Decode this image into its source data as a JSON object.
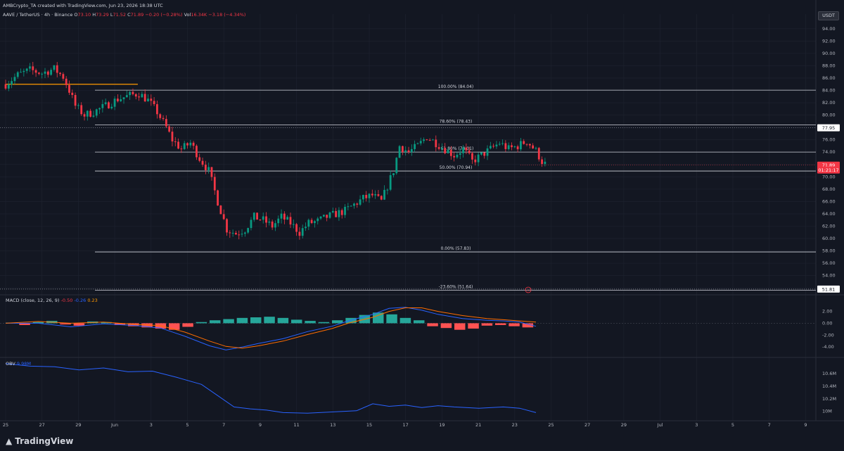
{
  "header": {
    "credit": "AMBCrypto_TA created with TradingView.com, Jun 23, 2026 18:38 UTC",
    "symbol": "AAVE / TetherUS · 4h · Binance",
    "o_label": "O",
    "o_value": "73.10",
    "h_label": "H",
    "h_value": "73.29",
    "l_label": "L",
    "l_value": "71.52",
    "c_label": "C",
    "c_value": "71.89",
    "change": "−0.20 (−0.28%)",
    "volume_label": "Vol",
    "volume_value": "16.34K",
    "vol_change": "−3.18 (−4.34%)"
  },
  "currency": "USDT",
  "logo": "TradingView",
  "colors": {
    "background": "#131722",
    "up": "#089981",
    "down": "#f23645",
    "fib_line": "#d1d4dc",
    "resistance": "#ff9800",
    "macd": "#2962ff",
    "signal": "#ff6d00",
    "obv": "#2962ff",
    "grid": "#1f2330"
  },
  "chart_data": [
    {
      "type": "candlestick",
      "title": "AAVE / TetherUS · 4h · Binance",
      "y_axis_ticks": [
        "94.00",
        "92.00",
        "90.00",
        "88.00",
        "86.00",
        "84.00",
        "82.00",
        "80.00",
        "78.00",
        "76.00",
        "74.00",
        "72.00",
        "70.00",
        "68.00",
        "66.00",
        "64.00",
        "62.00",
        "60.00",
        "58.00",
        "56.00",
        "54.00",
        "52.00"
      ],
      "ylim": [
        51,
        95
      ],
      "x_axis_ticks": [
        "25",
        "27",
        "29",
        "Jun",
        "3",
        "5",
        "7",
        "9",
        "11",
        "13",
        "15",
        "17",
        "19",
        "21",
        "23",
        "25",
        "27",
        "29",
        "Jul",
        "3",
        "5",
        "7",
        "9"
      ],
      "x_range_days": [
        "2026-05-25",
        "2026-07-10"
      ],
      "close_path": [
        [
          "2026-05-25T00:00",
          85.0
        ],
        [
          "2026-05-25T16:00",
          86.5
        ],
        [
          "2026-05-26T08:00",
          87.3
        ],
        [
          "2026-05-27T00:00",
          86.8
        ],
        [
          "2026-05-27T16:00",
          87.5
        ],
        [
          "2026-05-28T04:00",
          86.2
        ],
        [
          "2026-05-28T12:00",
          84.0
        ],
        [
          "2026-05-28T20:00",
          81.5
        ],
        [
          "2026-05-29T08:00",
          80.0
        ],
        [
          "2026-05-29T20:00",
          80.5
        ],
        [
          "2026-05-30T12:00",
          81.5
        ],
        [
          "2026-05-31T04:00",
          82.6
        ],
        [
          "2026-05-31T20:00",
          83.2
        ],
        [
          "2026-06-01T08:00",
          83.5
        ],
        [
          "2026-06-01T20:00",
          82.4
        ],
        [
          "2026-06-02T08:00",
          80.5
        ],
        [
          "2026-06-02T20:00",
          78.0
        ],
        [
          "2026-06-03T04:00",
          76.0
        ],
        [
          "2026-06-03T16:00",
          74.5
        ],
        [
          "2026-06-04T04:00",
          75.5
        ],
        [
          "2026-06-04T16:00",
          73.0
        ],
        [
          "2026-06-05T04:00",
          71.0
        ],
        [
          "2026-06-05T16:00",
          66.0
        ],
        [
          "2026-06-06T04:00",
          61.5
        ],
        [
          "2026-06-06T16:00",
          60.8
        ],
        [
          "2026-06-07T04:00",
          61.5
        ],
        [
          "2026-06-07T16:00",
          63.5
        ],
        [
          "2026-06-08T04:00",
          63.0
        ],
        [
          "2026-06-08T16:00",
          62.0
        ],
        [
          "2026-06-09T04:00",
          63.5
        ],
        [
          "2026-06-09T16:00",
          62.5
        ],
        [
          "2026-06-10T04:00",
          61.0
        ],
        [
          "2026-06-10T16:00",
          62.5
        ],
        [
          "2026-06-11T04:00",
          62.8
        ],
        [
          "2026-06-11T16:00",
          63.5
        ],
        [
          "2026-06-12T04:00",
          64.0
        ],
        [
          "2026-06-12T16:00",
          64.5
        ],
        [
          "2026-06-13T04:00",
          65.5
        ],
        [
          "2026-06-13T16:00",
          66.5
        ],
        [
          "2026-06-14T04:00",
          67.0
        ],
        [
          "2026-06-14T16:00",
          66.0
        ],
        [
          "2026-06-15T00:00",
          68.5
        ],
        [
          "2026-06-15T08:00",
          71.0
        ],
        [
          "2026-06-15T16:00",
          75.0
        ],
        [
          "2026-06-16T04:00",
          74.0
        ],
        [
          "2026-06-16T16:00",
          75.0
        ],
        [
          "2026-06-17T04:00",
          76.5
        ],
        [
          "2026-06-17T16:00",
          75.5
        ],
        [
          "2026-06-18T04:00",
          74.5
        ],
        [
          "2026-06-18T16:00",
          73.5
        ],
        [
          "2026-06-19T04:00",
          74.5
        ],
        [
          "2026-06-19T16:00",
          72.5
        ],
        [
          "2026-06-20T04:00",
          73.5
        ],
        [
          "2026-06-20T16:00",
          74.5
        ],
        [
          "2026-06-21T04:00",
          75.5
        ],
        [
          "2026-06-21T16:00",
          74.5
        ],
        [
          "2026-06-22T04:00",
          75.0
        ],
        [
          "2026-06-22T16:00",
          75.8
        ],
        [
          "2026-06-23T04:00",
          74.2
        ],
        [
          "2026-06-23T12:00",
          72.5
        ],
        [
          "2026-06-23T18:00",
          71.89
        ]
      ],
      "fib_levels": [
        {
          "label": "100.00% (84.04)",
          "value": 84.04
        },
        {
          "label": "78.60% (78.43)",
          "value": 78.43
        },
        {
          "label": "61.80% (74.01)",
          "value": 74.01
        },
        {
          "label": "50.00% (70.94)",
          "value": 70.94
        },
        {
          "label": "0.00% (57.83)",
          "value": 57.83
        },
        {
          "label": "-23.60% (51.64)",
          "value": 51.64
        }
      ],
      "resistance_line": {
        "value": 85.0,
        "x_from": "2026-05-25",
        "x_to": "2026-06-01"
      },
      "price_labels": [
        {
          "value": 77.95,
          "text": "77.95",
          "style": "white"
        },
        {
          "value": 71.89,
          "text": "71.89",
          "style": "red"
        },
        {
          "value": 71.1,
          "text": "01:21:17",
          "style": "red"
        },
        {
          "value": 51.81,
          "text": "51.81",
          "style": "white"
        }
      ]
    },
    {
      "type": "line",
      "title": "MACD (close, 12, 26, 9)",
      "title_values": [
        "-0.50",
        "-0.26",
        "0.23"
      ],
      "y_axis_ticks": [
        "2.00",
        "0.00",
        "-2.00",
        "-4.00"
      ],
      "ylim": [
        -5.4,
        4.2
      ],
      "series": [
        {
          "name": "MACD",
          "path": [
            [
              0,
              0.0
            ],
            [
              0.04,
              0.0
            ],
            [
              0.08,
              -0.6
            ],
            [
              0.12,
              -0.1
            ],
            [
              0.16,
              -0.4
            ],
            [
              0.19,
              -0.8
            ],
            [
              0.22,
              -2.2
            ],
            [
              0.25,
              -3.8
            ],
            [
              0.27,
              -4.5
            ],
            [
              0.29,
              -4.0
            ],
            [
              0.31,
              -3.4
            ],
            [
              0.34,
              -2.6
            ],
            [
              0.37,
              -1.4
            ],
            [
              0.4,
              -0.5
            ],
            [
              0.42,
              0.4
            ],
            [
              0.45,
              1.5
            ],
            [
              0.47,
              2.5
            ],
            [
              0.49,
              2.7
            ],
            [
              0.51,
              2.2
            ],
            [
              0.53,
              1.5
            ],
            [
              0.56,
              0.8
            ],
            [
              0.59,
              0.5
            ],
            [
              0.61,
              0.4
            ],
            [
              0.63,
              0.2
            ],
            [
              0.65,
              -0.5
            ]
          ]
        },
        {
          "name": "Signal",
          "path": [
            [
              0,
              0.0
            ],
            [
              0.04,
              0.3
            ],
            [
              0.08,
              0.0
            ],
            [
              0.12,
              0.2
            ],
            [
              0.16,
              -0.2
            ],
            [
              0.19,
              -0.4
            ],
            [
              0.22,
              -1.5
            ],
            [
              0.25,
              -3.0
            ],
            [
              0.27,
              -3.9
            ],
            [
              0.29,
              -4.2
            ],
            [
              0.31,
              -3.8
            ],
            [
              0.34,
              -3.0
            ],
            [
              0.37,
              -1.9
            ],
            [
              0.4,
              -0.9
            ],
            [
              0.42,
              0.0
            ],
            [
              0.45,
              1.0
            ],
            [
              0.47,
              2.0
            ],
            [
              0.49,
              2.6
            ],
            [
              0.51,
              2.6
            ],
            [
              0.53,
              2.0
            ],
            [
              0.56,
              1.3
            ],
            [
              0.59,
              0.8
            ],
            [
              0.61,
              0.6
            ],
            [
              0.63,
              0.4
            ],
            [
              0.65,
              0.2
            ]
          ]
        }
      ],
      "histogram": [
        0.1,
        -0.3,
        0.2,
        0.4,
        -0.2,
        -0.4,
        0.3,
        0.2,
        -0.3,
        -0.5,
        -0.7,
        -0.9,
        -1.1,
        -0.6,
        0.2,
        0.5,
        0.7,
        0.9,
        1.0,
        1.1,
        0.9,
        0.6,
        0.4,
        0.2,
        0.5,
        0.9,
        1.4,
        1.8,
        1.5,
        0.9,
        0.5,
        -0.5,
        -0.8,
        -1.1,
        -0.9,
        -0.4,
        -0.3,
        -0.5,
        -0.7
      ]
    },
    {
      "type": "line",
      "title": "OBV",
      "title_values": [
        "9.98M"
      ],
      "y_axis_ticks": [
        "10.6M",
        "10.4M",
        "10.2M",
        "10M"
      ],
      "series": [
        {
          "name": "OBV",
          "path": [
            [
              0,
              10.76
            ],
            [
              0.03,
              10.72
            ],
            [
              0.06,
              10.71
            ],
            [
              0.09,
              10.66
            ],
            [
              0.12,
              10.69
            ],
            [
              0.15,
              10.63
            ],
            [
              0.18,
              10.64
            ],
            [
              0.21,
              10.54
            ],
            [
              0.24,
              10.43
            ],
            [
              0.26,
              10.25
            ],
            [
              0.28,
              10.07
            ],
            [
              0.3,
              10.04
            ],
            [
              0.32,
              10.02
            ],
            [
              0.34,
              9.98
            ],
            [
              0.37,
              9.97
            ],
            [
              0.4,
              9.99
            ],
            [
              0.43,
              10.01
            ],
            [
              0.45,
              10.12
            ],
            [
              0.47,
              10.08
            ],
            [
              0.49,
              10.1
            ],
            [
              0.51,
              10.06
            ],
            [
              0.53,
              10.09
            ],
            [
              0.55,
              10.07
            ],
            [
              0.58,
              10.05
            ],
            [
              0.61,
              10.07
            ],
            [
              0.63,
              10.05
            ],
            [
              0.65,
              9.98
            ]
          ]
        }
      ]
    }
  ]
}
